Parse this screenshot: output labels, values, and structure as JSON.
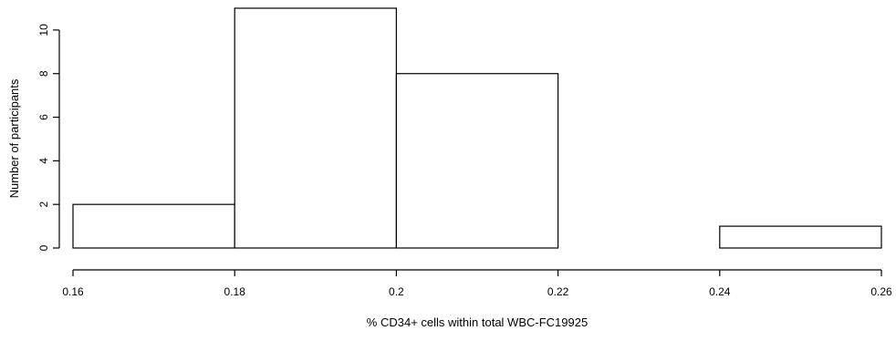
{
  "chart_data": {
    "type": "bar",
    "subtype": "histogram",
    "bins": [
      {
        "start": 0.16,
        "end": 0.18,
        "count": 2
      },
      {
        "start": 0.18,
        "end": 0.2,
        "count": 11
      },
      {
        "start": 0.2,
        "end": 0.22,
        "count": 8
      },
      {
        "start": 0.22,
        "end": 0.24,
        "count": 0
      },
      {
        "start": 0.24,
        "end": 0.26,
        "count": 1
      }
    ],
    "xlabel": "% CD34+ cells within total WBC-FC19925",
    "ylabel": "Number of participants",
    "x_ticks": [
      "0.16",
      "0.18",
      "0.2",
      "0.22",
      "0.24",
      "0.26"
    ],
    "y_ticks": [
      "0",
      "2",
      "4",
      "6",
      "8",
      "10"
    ],
    "xlim": [
      0.16,
      0.26
    ],
    "ylim": [
      0,
      11
    ],
    "grid": false,
    "legend": "none",
    "bar_fill": "#ffffff",
    "bar_stroke": "#000000"
  }
}
